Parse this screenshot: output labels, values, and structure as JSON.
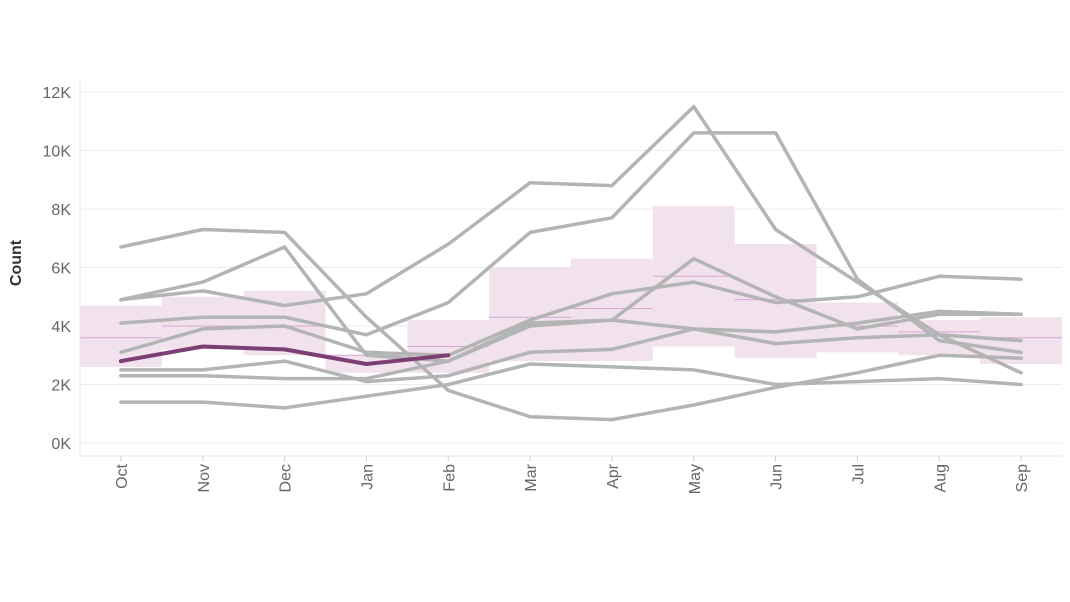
{
  "chart_data": {
    "type": "line",
    "title": "",
    "xlabel": "",
    "ylabel": "Count",
    "ylim": [
      0,
      12000
    ],
    "y_ticks": [
      0,
      2000,
      4000,
      6000,
      8000,
      10000,
      12000
    ],
    "y_tick_labels": [
      "0K",
      "2K",
      "4K",
      "6K",
      "8K",
      "10K",
      "12K"
    ],
    "categories": [
      "Oct",
      "Nov",
      "Dec",
      "Jan",
      "Feb",
      "Mar",
      "Apr",
      "May",
      "Jun",
      "Jul",
      "Aug",
      "Sep"
    ],
    "grid": true,
    "legend": "none",
    "colors": {
      "history": "#b3b5b5",
      "current": "#7b3f73",
      "band": "#f1e2ee",
      "median": "#d9a6cf",
      "grid": "#ececec"
    },
    "band": {
      "low": [
        2600,
        3200,
        3000,
        2400,
        2400,
        2800,
        2800,
        3300,
        2900,
        3100,
        3000,
        2700
      ],
      "high": [
        4700,
        5000,
        5200,
        3000,
        4200,
        6000,
        6300,
        8100,
        6800,
        4800,
        4200,
        4300
      ],
      "median": [
        3600,
        4000,
        4000,
        3000,
        3300,
        4300,
        4600,
        5700,
        4900,
        4000,
        3800,
        3600
      ]
    },
    "series": [
      {
        "values": [
          6700,
          7300,
          7200,
          4300,
          1800,
          900,
          800,
          1300,
          1900,
          2400,
          3000,
          2900
        ]
      },
      {
        "values": [
          4900,
          5500,
          6700,
          3000,
          2800,
          4000,
          4200,
          6300,
          5000,
          3900,
          4400,
          4400
        ]
      },
      {
        "values": [
          4900,
          5200,
          4700,
          5100,
          6800,
          8900,
          8800,
          11500,
          7300,
          5500,
          3700,
          2400
        ]
      },
      {
        "values": [
          4100,
          4300,
          4300,
          3700,
          4800,
          7200,
          7700,
          10600,
          10600,
          5600,
          3500,
          3100
        ]
      },
      {
        "values": [
          3100,
          3900,
          4000,
          3100,
          3000,
          4200,
          5100,
          5500,
          4800,
          5000,
          5700,
          5600
        ]
      },
      {
        "values": [
          2500,
          2500,
          2800,
          2100,
          2300,
          3100,
          3200,
          3900,
          3400,
          3600,
          3700,
          3500
        ]
      },
      {
        "values": [
          2300,
          2300,
          2200,
          2200,
          2800,
          4100,
          4200,
          3900,
          3800,
          4100,
          4500,
          4400
        ]
      },
      {
        "values": [
          1400,
          1400,
          1200,
          1600,
          2000,
          2700,
          2600,
          2500,
          2000,
          2100,
          2200,
          2000
        ]
      },
      {
        "values": [
          2800,
          3300,
          3200,
          2700,
          3000,
          null,
          null,
          null,
          null,
          null,
          null,
          null
        ],
        "current": true
      }
    ]
  }
}
